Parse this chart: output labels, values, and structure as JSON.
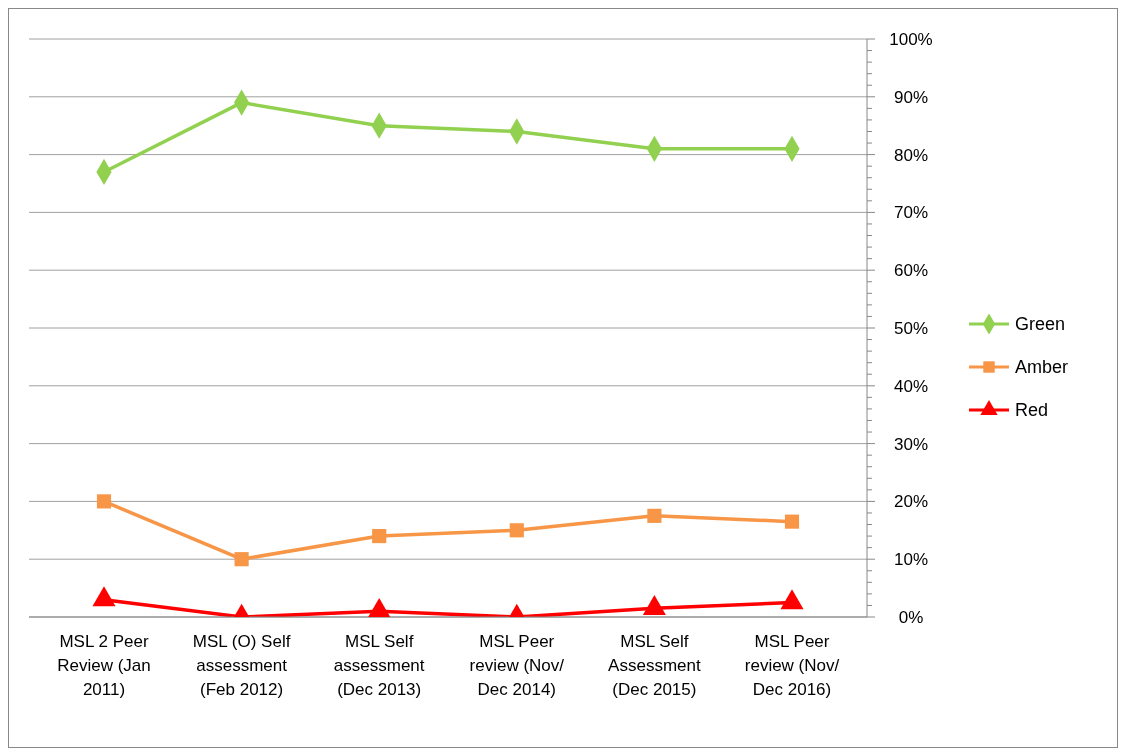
{
  "chart_data": {
    "type": "line",
    "categories": [
      "MSL 2 Peer Review  (Jan 2011)",
      "MSL (O) Self assessment (Feb 2012)",
      "MSL Self assessment (Dec 2013)",
      "MSL Peer review (Nov/ Dec 2014)",
      "MSL Self Assessment (Dec 2015)",
      "MSL Peer review (Nov/ Dec 2016)"
    ],
    "series": [
      {
        "name": "Green",
        "color": "#92d050",
        "marker": "diamond",
        "values": [
          77,
          89,
          85,
          84,
          81,
          81
        ]
      },
      {
        "name": "Amber",
        "color": "#f79646",
        "marker": "square",
        "values": [
          20,
          10,
          14,
          15,
          17.5,
          16.5
        ]
      },
      {
        "name": "Red",
        "color": "#ff0000",
        "marker": "triangle",
        "values": [
          3,
          0,
          1,
          0,
          1.5,
          2.5
        ]
      }
    ],
    "ylim": [
      0,
      100
    ],
    "yticks": [
      {
        "value": 0,
        "label": "0%"
      },
      {
        "value": 2,
        "label": null
      },
      {
        "value": 4,
        "label": null
      },
      {
        "value": 6,
        "label": null
      },
      {
        "value": 8,
        "label": null
      },
      {
        "value": 10,
        "label": "10%"
      },
      {
        "value": 12,
        "label": null
      },
      {
        "value": 14,
        "label": null
      },
      {
        "value": 16,
        "label": null
      },
      {
        "value": 18,
        "label": null
      },
      {
        "value": 20,
        "label": "20%"
      },
      {
        "value": 22,
        "label": null
      },
      {
        "value": 24,
        "label": null
      },
      {
        "value": 26,
        "label": null
      },
      {
        "value": 28,
        "label": null
      },
      {
        "value": 30,
        "label": "30%"
      },
      {
        "value": 32,
        "label": null
      },
      {
        "value": 34,
        "label": null
      },
      {
        "value": 36,
        "label": null
      },
      {
        "value": 38,
        "label": null
      },
      {
        "value": 40,
        "label": "40%"
      },
      {
        "value": 42,
        "label": null
      },
      {
        "value": 44,
        "label": null
      },
      {
        "value": 46,
        "label": null
      },
      {
        "value": 48,
        "label": null
      },
      {
        "value": 50,
        "label": "50%"
      },
      {
        "value": 52,
        "label": null
      },
      {
        "value": 54,
        "label": null
      },
      {
        "value": 56,
        "label": null
      },
      {
        "value": 58,
        "label": null
      },
      {
        "value": 60,
        "label": "60%"
      },
      {
        "value": 62,
        "label": null
      },
      {
        "value": 64,
        "label": null
      },
      {
        "value": 66,
        "label": null
      },
      {
        "value": 68,
        "label": null
      },
      {
        "value": 70,
        "label": "70%"
      },
      {
        "value": 72,
        "label": null
      },
      {
        "value": 74,
        "label": null
      },
      {
        "value": 76,
        "label": null
      },
      {
        "value": 78,
        "label": null
      },
      {
        "value": 80,
        "label": "80%"
      },
      {
        "value": 82,
        "label": null
      },
      {
        "value": 84,
        "label": null
      },
      {
        "value": 86,
        "label": null
      },
      {
        "value": 88,
        "label": null
      },
      {
        "value": 90,
        "label": "90%"
      },
      {
        "value": 92,
        "label": null
      },
      {
        "value": 94,
        "label": null
      },
      {
        "value": 96,
        "label": null
      },
      {
        "value": 98,
        "label": null
      },
      {
        "value": 100,
        "label": "100%"
      }
    ],
    "grid": "y",
    "legend": "right",
    "line_style": "solid"
  }
}
